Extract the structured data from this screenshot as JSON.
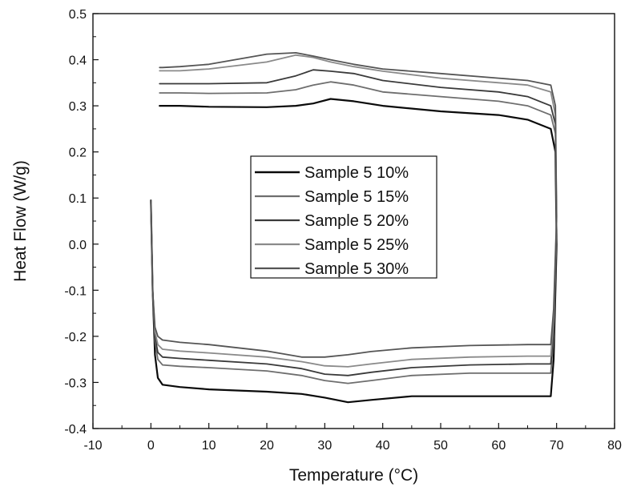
{
  "chart_data": {
    "type": "line",
    "title": "",
    "xlabel": "Temperature (°C)",
    "ylabel": "Heat Flow (W/g)",
    "xlim": [
      -10,
      80
    ],
    "ylim": [
      -0.4,
      0.5
    ],
    "xticks": [
      "-10",
      "0",
      "10",
      "20",
      "30",
      "40",
      "50",
      "60",
      "70",
      "80"
    ],
    "yticks": [
      "-0.4",
      "-0.3",
      "-0.2",
      "-0.1",
      "0.0",
      "0.1",
      "0.2",
      "0.3",
      "0.4",
      "0.5"
    ],
    "grid": false,
    "legend_position": "center",
    "series": [
      {
        "name": "Sample 5 10%",
        "color": "#0a0a0a",
        "x": [
          0,
          0.3,
          0.7,
          1.2,
          2,
          5,
          10,
          20,
          26,
          30,
          34,
          38,
          45,
          55,
          65,
          69,
          69.5,
          70,
          69.8,
          69,
          65,
          60,
          50,
          40,
          35,
          31,
          28,
          25,
          20,
          10,
          5,
          2,
          1.5
        ],
        "y": [
          0.095,
          -0.1,
          -0.24,
          -0.29,
          -0.305,
          -0.31,
          -0.315,
          -0.32,
          -0.325,
          -0.333,
          -0.343,
          -0.338,
          -0.33,
          -0.33,
          -0.33,
          -0.33,
          -0.25,
          0.0,
          0.2,
          0.25,
          0.27,
          0.28,
          0.288,
          0.3,
          0.31,
          0.315,
          0.305,
          0.3,
          0.297,
          0.298,
          0.3,
          0.3,
          0.3
        ]
      },
      {
        "name": "Sample 5 15%",
        "color": "#6e6e6e",
        "x": [
          0,
          0.3,
          0.7,
          1.2,
          2,
          5,
          10,
          20,
          26,
          30,
          34,
          38,
          45,
          55,
          65,
          69,
          69.5,
          70,
          69.8,
          69,
          65,
          60,
          50,
          40,
          35,
          31,
          28,
          25,
          20,
          10,
          5,
          2,
          1.5
        ],
        "y": [
          0.095,
          -0.1,
          -0.21,
          -0.25,
          -0.262,
          -0.265,
          -0.268,
          -0.275,
          -0.285,
          -0.296,
          -0.302,
          -0.296,
          -0.285,
          -0.28,
          -0.28,
          -0.28,
          -0.2,
          0.02,
          0.24,
          0.28,
          0.3,
          0.31,
          0.32,
          0.33,
          0.345,
          0.352,
          0.345,
          0.335,
          0.328,
          0.327,
          0.328,
          0.328,
          0.328
        ]
      },
      {
        "name": "Sample 5 20%",
        "color": "#3a3a3a",
        "x": [
          0,
          0.3,
          0.7,
          1.2,
          2,
          5,
          10,
          20,
          26,
          30,
          34,
          38,
          45,
          55,
          65,
          69,
          69.5,
          70,
          69.8,
          69,
          65,
          60,
          50,
          40,
          35,
          31,
          28,
          25,
          20,
          10,
          5,
          2,
          1.5
        ],
        "y": [
          0.095,
          -0.1,
          -0.2,
          -0.235,
          -0.245,
          -0.248,
          -0.252,
          -0.26,
          -0.27,
          -0.282,
          -0.285,
          -0.278,
          -0.268,
          -0.262,
          -0.26,
          -0.26,
          -0.18,
          0.03,
          0.26,
          0.3,
          0.32,
          0.33,
          0.34,
          0.355,
          0.37,
          0.375,
          0.378,
          0.365,
          0.35,
          0.348,
          0.348,
          0.348,
          0.348
        ]
      },
      {
        "name": "Sample 5 25%",
        "color": "#8a8a8a",
        "x": [
          0,
          0.3,
          0.7,
          1.2,
          2,
          5,
          10,
          20,
          26,
          30,
          34,
          38,
          45,
          55,
          65,
          69,
          69.5,
          70,
          69.8,
          69,
          65,
          60,
          50,
          40,
          35,
          31,
          28,
          25,
          20,
          10,
          5,
          2,
          1.5
        ],
        "y": [
          0.095,
          -0.1,
          -0.19,
          -0.218,
          -0.228,
          -0.232,
          -0.236,
          -0.245,
          -0.255,
          -0.264,
          -0.266,
          -0.26,
          -0.25,
          -0.245,
          -0.243,
          -0.243,
          -0.16,
          0.05,
          0.28,
          0.33,
          0.345,
          0.35,
          0.36,
          0.375,
          0.385,
          0.395,
          0.405,
          0.41,
          0.395,
          0.38,
          0.376,
          0.376,
          0.376
        ]
      },
      {
        "name": "Sample 5 30%",
        "color": "#555555",
        "x": [
          0,
          0.3,
          0.7,
          1.2,
          2,
          5,
          10,
          20,
          26,
          30,
          34,
          38,
          45,
          55,
          65,
          69,
          69.5,
          70,
          69.8,
          69,
          65,
          60,
          50,
          40,
          35,
          31,
          28,
          25,
          20,
          10,
          5,
          2,
          1.5
        ],
        "y": [
          0.095,
          -0.1,
          -0.18,
          -0.2,
          -0.208,
          -0.213,
          -0.218,
          -0.232,
          -0.245,
          -0.245,
          -0.24,
          -0.233,
          -0.225,
          -0.22,
          -0.218,
          -0.218,
          -0.14,
          0.06,
          0.3,
          0.345,
          0.355,
          0.36,
          0.37,
          0.38,
          0.39,
          0.4,
          0.408,
          0.415,
          0.412,
          0.39,
          0.385,
          0.383,
          0.383
        ]
      }
    ]
  }
}
